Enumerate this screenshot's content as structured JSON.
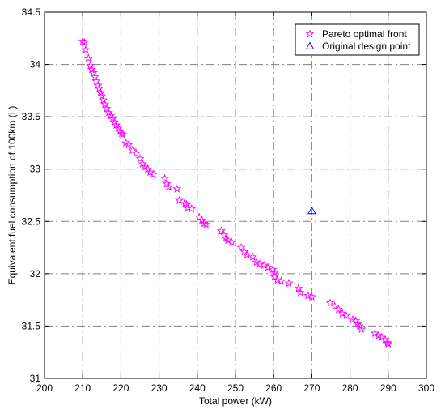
{
  "chart_data": {
    "type": "scatter",
    "title": "",
    "xlabel": "Total power (kW)",
    "ylabel": "Equivalent fuel consumption of 100km (L)",
    "xlim": [
      200,
      300
    ],
    "ylim": [
      31,
      34.5
    ],
    "xticks": [
      200,
      210,
      220,
      230,
      240,
      250,
      260,
      270,
      280,
      290,
      300
    ],
    "yticks": [
      31,
      31.5,
      32,
      32.5,
      33,
      33.5,
      34,
      34.5
    ],
    "grid": true,
    "legend_position": "top-right",
    "series": [
      {
        "name": "Pareto optimal front",
        "marker": "star",
        "color": "#ff00ff",
        "points": [
          [
            210.0,
            34.22
          ],
          [
            210.4,
            34.21
          ],
          [
            210.8,
            34.14
          ],
          [
            211.5,
            34.06
          ],
          [
            212.0,
            33.99
          ],
          [
            212.4,
            33.95
          ],
          [
            212.8,
            33.92
          ],
          [
            213.2,
            33.88
          ],
          [
            213.6,
            33.84
          ],
          [
            214.0,
            33.8
          ],
          [
            214.3,
            33.77
          ],
          [
            214.7,
            33.73
          ],
          [
            215.0,
            33.7
          ],
          [
            215.4,
            33.66
          ],
          [
            215.8,
            33.62
          ],
          [
            216.3,
            33.58
          ],
          [
            216.8,
            33.54
          ],
          [
            217.3,
            33.51
          ],
          [
            217.8,
            33.48
          ],
          [
            218.3,
            33.45
          ],
          [
            218.8,
            33.42
          ],
          [
            219.3,
            33.39
          ],
          [
            219.8,
            33.36
          ],
          [
            220.2,
            33.34
          ],
          [
            220.5,
            33.33
          ],
          [
            221.3,
            33.25
          ],
          [
            222.0,
            33.23
          ],
          [
            223.0,
            33.18
          ],
          [
            224.0,
            33.15
          ],
          [
            225.0,
            33.1
          ],
          [
            225.7,
            33.05
          ],
          [
            226.3,
            33.02
          ],
          [
            227.0,
            33.0
          ],
          [
            227.7,
            32.97
          ],
          [
            228.5,
            32.95
          ],
          [
            231.5,
            32.91
          ],
          [
            232.0,
            32.86
          ],
          [
            232.5,
            32.83
          ],
          [
            234.7,
            32.81
          ],
          [
            235.3,
            32.7
          ],
          [
            236.8,
            32.67
          ],
          [
            237.2,
            32.66
          ],
          [
            237.5,
            32.63
          ],
          [
            238.5,
            32.62
          ],
          [
            240.5,
            32.54
          ],
          [
            241.2,
            32.51
          ],
          [
            241.8,
            32.48
          ],
          [
            242.3,
            32.47
          ],
          [
            246.3,
            32.41
          ],
          [
            247.0,
            32.37
          ],
          [
            247.5,
            32.34
          ],
          [
            248.0,
            32.32
          ],
          [
            249.0,
            32.3
          ],
          [
            251.5,
            32.25
          ],
          [
            252.3,
            32.21
          ],
          [
            253.0,
            32.18
          ],
          [
            254.5,
            32.16
          ],
          [
            255.5,
            32.11
          ],
          [
            256.3,
            32.09
          ],
          [
            257.5,
            32.08
          ],
          [
            258.5,
            32.06
          ],
          [
            259.8,
            32.04
          ],
          [
            260.3,
            32.01
          ],
          [
            260.2,
            31.97
          ],
          [
            261.0,
            31.94
          ],
          [
            262.0,
            31.93
          ],
          [
            264.0,
            31.91
          ],
          [
            266.5,
            31.86
          ],
          [
            267.0,
            31.82
          ],
          [
            269.0,
            31.79
          ],
          [
            270.0,
            31.78
          ],
          [
            274.8,
            31.72
          ],
          [
            276.0,
            31.69
          ],
          [
            277.0,
            31.66
          ],
          [
            278.0,
            31.62
          ],
          [
            279.0,
            31.6
          ],
          [
            280.7,
            31.56
          ],
          [
            281.5,
            31.55
          ],
          [
            282.0,
            31.52
          ],
          [
            282.5,
            31.5
          ],
          [
            283.0,
            31.47
          ],
          [
            286.5,
            31.43
          ],
          [
            287.5,
            31.41
          ],
          [
            288.3,
            31.39
          ],
          [
            289.2,
            31.37
          ],
          [
            289.8,
            31.34
          ],
          [
            290.0,
            31.33
          ]
        ]
      },
      {
        "name": "Original design point",
        "marker": "triangle",
        "color": "#0000ff",
        "points": [
          [
            270.0,
            32.6
          ]
        ]
      }
    ]
  }
}
